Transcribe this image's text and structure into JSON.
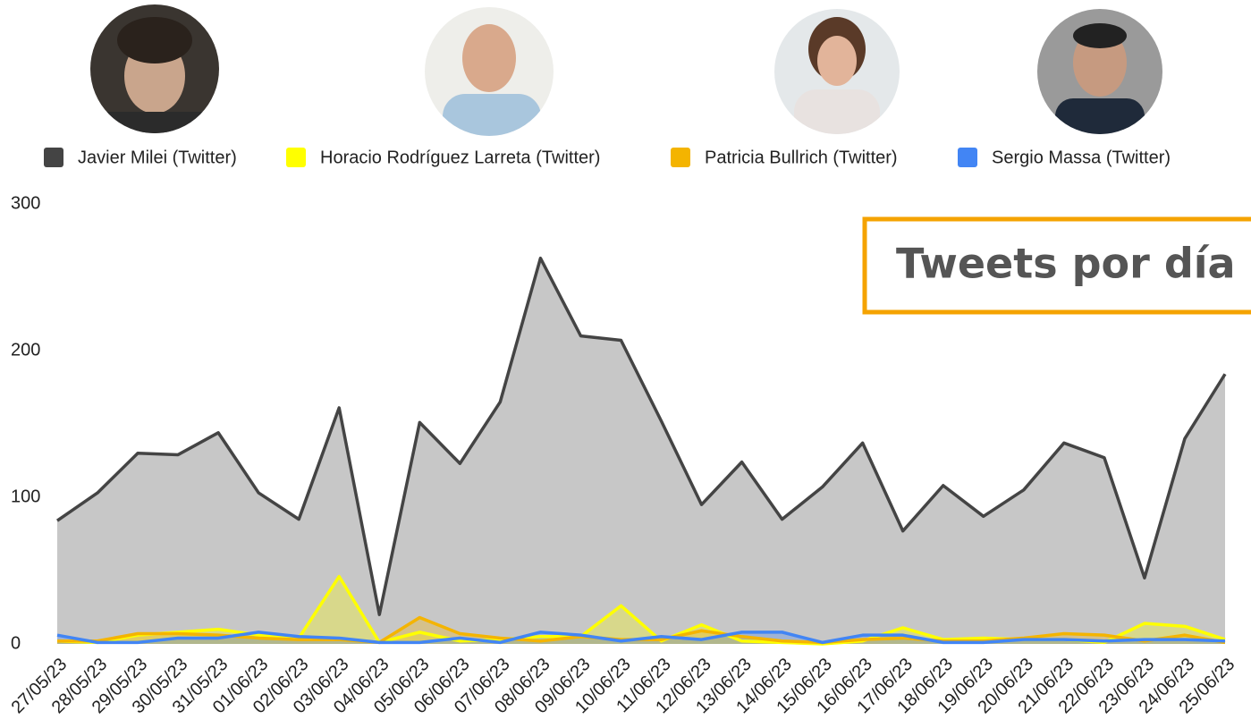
{
  "chart_data": {
    "type": "area",
    "title": "Tweets por día",
    "categories": [
      "27/05/23",
      "28/05/23",
      "29/05/23",
      "30/05/23",
      "31/05/23",
      "01/06/23",
      "02/06/23",
      "03/06/23",
      "04/06/23",
      "05/06/23",
      "06/06/23",
      "07/06/23",
      "08/06/23",
      "09/06/23",
      "10/06/23",
      "11/06/23",
      "12/06/23",
      "13/06/23",
      "14/06/23",
      "15/06/23",
      "16/06/23",
      "17/06/23",
      "18/06/23",
      "19/06/23",
      "20/06/23",
      "21/06/23",
      "22/06/23",
      "23/06/23",
      "24/06/23",
      "25/06/23"
    ],
    "series": [
      {
        "name": "Javier Milei (Twitter)",
        "color": "#444444",
        "values": [
          84,
          103,
          130,
          129,
          144,
          103,
          85,
          161,
          20,
          151,
          123,
          165,
          263,
          210,
          207,
          152,
          95,
          124,
          85,
          107,
          137,
          77,
          108,
          87,
          105,
          137,
          127,
          45,
          140,
          184
        ]
      },
      {
        "name": "Horacio Rodríguez Larreta (Twitter)",
        "color": "#ffff00",
        "values": [
          2,
          1,
          6,
          8,
          10,
          6,
          4,
          46,
          1,
          8,
          2,
          3,
          5,
          5,
          26,
          2,
          13,
          2,
          1,
          0,
          2,
          11,
          3,
          4,
          3,
          3,
          1,
          14,
          12,
          3
        ]
      },
      {
        "name": "Patricia Bullrich (Twitter)",
        "color": "#f4b400",
        "values": [
          2,
          2,
          7,
          7,
          6,
          4,
          3,
          3,
          1,
          18,
          7,
          4,
          2,
          5,
          3,
          3,
          9,
          5,
          2,
          1,
          3,
          4,
          2,
          2,
          4,
          7,
          6,
          2,
          6,
          1
        ]
      },
      {
        "name": "Sergio Massa (Twitter)",
        "color": "#4285f4",
        "values": [
          6,
          1,
          1,
          4,
          4,
          8,
          5,
          4,
          1,
          1,
          4,
          1,
          8,
          6,
          2,
          5,
          3,
          8,
          8,
          1,
          6,
          6,
          1,
          1,
          3,
          3,
          2,
          3,
          3,
          2
        ]
      }
    ],
    "ylim": [
      0,
      300
    ],
    "yticks": [
      0,
      100,
      200,
      300
    ]
  }
}
